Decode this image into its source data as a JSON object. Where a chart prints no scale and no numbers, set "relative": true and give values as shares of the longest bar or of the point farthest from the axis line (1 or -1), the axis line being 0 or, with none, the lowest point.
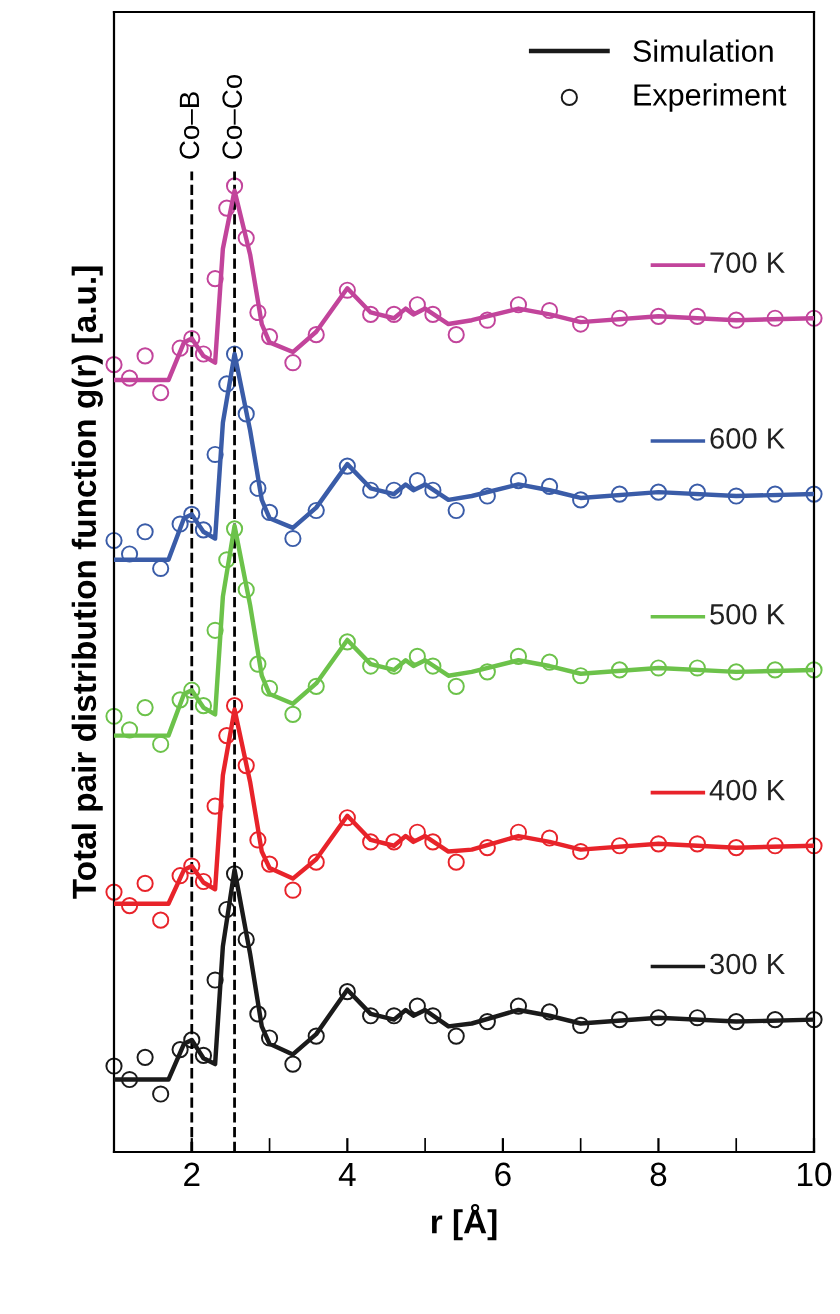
{
  "chart_data": {
    "type": "line",
    "relative": true,
    "xlabel": "r [Å]",
    "ylabel": "Total pair distribution function g(r) [a.u.]",
    "xlim": [
      1,
      10
    ],
    "xticks": [
      2,
      4,
      6,
      8,
      10
    ],
    "grid": false,
    "legend": "top right",
    "line_style": "solid",
    "annotations": [
      "Simulation",
      "Experiment"
    ],
    "ref_lines": [
      {
        "axis": "x",
        "value": 2.0,
        "label": "Co–B",
        "color": "#000000",
        "line_style": "dashed"
      },
      {
        "axis": "x",
        "value": 2.55,
        "label": "Co–Co",
        "color": "#000000",
        "line_style": "dashed"
      }
    ],
    "series": [
      {
        "name": "700 K",
        "color": "#c2449b",
        "marker": "none",
        "x": [
          1.0,
          1.7,
          1.9,
          2.0,
          2.15,
          2.3,
          2.4,
          2.55,
          2.75,
          2.9,
          3.0,
          3.3,
          3.6,
          4.0,
          4.3,
          4.6,
          4.75,
          4.85,
          5.0,
          5.3,
          5.6,
          6.2,
          6.6,
          7.0,
          8.0,
          9.0,
          10.0
        ],
        "values": [
          0.799,
          0.799,
          0.838,
          0.842,
          0.824,
          0.817,
          0.935,
          0.995,
          0.929,
          0.857,
          0.838,
          0.828,
          0.849,
          0.894,
          0.869,
          0.863,
          0.873,
          0.867,
          0.873,
          0.857,
          0.861,
          0.873,
          0.867,
          0.859,
          0.865,
          0.861,
          0.863
        ]
      },
      {
        "name": "600 K",
        "color": "#3a5ca8",
        "marker": "none",
        "x": [
          1.0,
          1.7,
          1.9,
          2.0,
          2.15,
          2.3,
          2.4,
          2.55,
          2.75,
          2.9,
          3.0,
          3.3,
          3.6,
          4.0,
          4.3,
          4.6,
          4.75,
          4.85,
          5.0,
          5.3,
          5.6,
          6.2,
          6.6,
          7.0,
          8.0,
          9.0,
          10.0
        ],
        "values": [
          0.613,
          0.613,
          0.656,
          0.66,
          0.642,
          0.635,
          0.755,
          0.826,
          0.747,
          0.675,
          0.656,
          0.646,
          0.667,
          0.712,
          0.687,
          0.681,
          0.691,
          0.685,
          0.691,
          0.675,
          0.679,
          0.691,
          0.685,
          0.677,
          0.683,
          0.679,
          0.681
        ]
      },
      {
        "name": "500 K",
        "color": "#6cc24a",
        "marker": "none",
        "x": [
          1.0,
          1.7,
          1.9,
          2.0,
          2.15,
          2.3,
          2.4,
          2.55,
          2.75,
          2.9,
          3.0,
          3.3,
          3.6,
          4.0,
          4.3,
          4.6,
          4.75,
          4.85,
          5.0,
          5.3,
          5.6,
          6.2,
          6.6,
          7.0,
          8.0,
          9.0,
          10.0
        ],
        "values": [
          0.431,
          0.431,
          0.474,
          0.478,
          0.46,
          0.453,
          0.575,
          0.648,
          0.566,
          0.493,
          0.474,
          0.464,
          0.485,
          0.53,
          0.505,
          0.499,
          0.509,
          0.503,
          0.509,
          0.493,
          0.497,
          0.509,
          0.503,
          0.495,
          0.501,
          0.497,
          0.499
        ]
      },
      {
        "name": "400 K",
        "color": "#e8232a",
        "marker": "none",
        "x": [
          1.0,
          1.7,
          1.9,
          2.0,
          2.15,
          2.3,
          2.4,
          2.55,
          2.75,
          2.9,
          3.0,
          3.3,
          3.6,
          4.0,
          4.3,
          4.6,
          4.75,
          4.85,
          5.0,
          5.3,
          5.6,
          6.2,
          6.6,
          7.0,
          8.0,
          9.0,
          10.0
        ],
        "values": [
          0.257,
          0.257,
          0.292,
          0.296,
          0.279,
          0.272,
          0.39,
          0.458,
          0.383,
          0.311,
          0.294,
          0.283,
          0.303,
          0.348,
          0.323,
          0.317,
          0.327,
          0.321,
          0.327,
          0.311,
          0.313,
          0.327,
          0.321,
          0.313,
          0.319,
          0.315,
          0.317
        ]
      },
      {
        "name": "300 K",
        "color": "#1a1a1a",
        "marker": "none",
        "x": [
          1.0,
          1.7,
          1.9,
          2.0,
          2.15,
          2.3,
          2.4,
          2.55,
          2.75,
          2.9,
          3.0,
          3.3,
          3.6,
          4.0,
          4.3,
          4.6,
          4.75,
          4.85,
          5.0,
          5.3,
          5.6,
          6.2,
          6.6,
          7.0,
          8.0,
          9.0,
          10.0
        ],
        "values": [
          0.075,
          0.075,
          0.112,
          0.116,
          0.097,
          0.091,
          0.213,
          0.292,
          0.205,
          0.13,
          0.112,
          0.101,
          0.122,
          0.168,
          0.143,
          0.137,
          0.147,
          0.141,
          0.147,
          0.13,
          0.133,
          0.147,
          0.141,
          0.133,
          0.139,
          0.135,
          0.137
        ]
      },
      {
        "type": "scatter",
        "color": "#c2449b",
        "marker": "circle",
        "x": [
          1.0,
          1.2,
          1.4,
          1.6,
          1.85,
          2.0,
          2.15,
          2.3,
          2.45,
          2.55,
          2.7,
          2.85,
          3.0,
          3.3,
          3.6,
          4.0,
          4.3,
          4.6,
          4.9,
          5.1,
          5.4,
          5.8,
          6.2,
          6.6,
          7.0,
          7.5,
          8.0,
          8.5,
          9.0,
          9.5,
          10.0
        ],
        "values": [
          0.815,
          0.801,
          0.824,
          0.786,
          0.832,
          0.842,
          0.826,
          0.904,
          0.977,
          1.0,
          0.946,
          0.869,
          0.844,
          0.817,
          0.846,
          0.892,
          0.867,
          0.867,
          0.877,
          0.867,
          0.846,
          0.861,
          0.877,
          0.871,
          0.857,
          0.863,
          0.865,
          0.865,
          0.861,
          0.863,
          0.863
        ]
      },
      {
        "type": "scatter",
        "color": "#3a5ca8",
        "marker": "circle",
        "x": [
          1.0,
          1.2,
          1.4,
          1.6,
          1.85,
          2.0,
          2.15,
          2.3,
          2.45,
          2.55,
          2.7,
          2.85,
          3.0,
          3.3,
          3.6,
          4.0,
          4.3,
          4.6,
          4.9,
          5.1,
          5.4,
          5.8,
          6.2,
          6.6,
          7.0,
          7.5,
          8.0,
          8.5,
          9.0,
          9.5,
          10.0
        ],
        "values": [
          0.633,
          0.619,
          0.642,
          0.604,
          0.65,
          0.66,
          0.644,
          0.722,
          0.795,
          0.826,
          0.764,
          0.687,
          0.662,
          0.635,
          0.664,
          0.71,
          0.685,
          0.685,
          0.695,
          0.685,
          0.664,
          0.679,
          0.695,
          0.689,
          0.675,
          0.681,
          0.683,
          0.683,
          0.679,
          0.681,
          0.681
        ]
      },
      {
        "type": "scatter",
        "color": "#6cc24a",
        "marker": "circle",
        "x": [
          1.0,
          1.2,
          1.4,
          1.6,
          1.85,
          2.0,
          2.15,
          2.3,
          2.45,
          2.55,
          2.7,
          2.85,
          3.0,
          3.3,
          3.6,
          4.0,
          4.3,
          4.6,
          4.9,
          5.1,
          5.4,
          5.8,
          6.2,
          6.6,
          7.0,
          7.5,
          8.0,
          8.5,
          9.0,
          9.5,
          10.0
        ],
        "values": [
          0.451,
          0.437,
          0.46,
          0.422,
          0.468,
          0.478,
          0.462,
          0.54,
          0.613,
          0.645,
          0.582,
          0.505,
          0.48,
          0.453,
          0.482,
          0.528,
          0.503,
          0.503,
          0.513,
          0.503,
          0.482,
          0.497,
          0.513,
          0.507,
          0.493,
          0.499,
          0.501,
          0.501,
          0.497,
          0.499,
          0.499
        ]
      },
      {
        "type": "scatter",
        "color": "#e8232a",
        "marker": "circle",
        "x": [
          1.0,
          1.2,
          1.4,
          1.6,
          1.85,
          2.0,
          2.15,
          2.3,
          2.45,
          2.55,
          2.7,
          2.85,
          3.0,
          3.3,
          3.6,
          4.0,
          4.3,
          4.6,
          4.9,
          5.1,
          5.4,
          5.8,
          6.2,
          6.6,
          7.0,
          7.5,
          8.0,
          8.5,
          9.0,
          9.5,
          10.0
        ],
        "values": [
          0.269,
          0.255,
          0.278,
          0.24,
          0.286,
          0.296,
          0.28,
          0.358,
          0.431,
          0.462,
          0.4,
          0.323,
          0.298,
          0.271,
          0.3,
          0.346,
          0.321,
          0.321,
          0.331,
          0.321,
          0.3,
          0.315,
          0.331,
          0.325,
          0.311,
          0.317,
          0.319,
          0.319,
          0.315,
          0.317,
          0.317
        ]
      },
      {
        "type": "scatter",
        "color": "#1a1a1a",
        "marker": "circle",
        "x": [
          1.0,
          1.2,
          1.4,
          1.6,
          1.85,
          2.0,
          2.15,
          2.3,
          2.45,
          2.55,
          2.7,
          2.85,
          3.0,
          3.3,
          3.6,
          4.0,
          4.3,
          4.6,
          4.9,
          5.1,
          5.4,
          5.8,
          6.2,
          6.6,
          7.0,
          7.5,
          8.0,
          8.5,
          9.0,
          9.5,
          10.0
        ],
        "values": [
          0.089,
          0.075,
          0.098,
          0.06,
          0.106,
          0.116,
          0.1,
          0.178,
          0.251,
          0.288,
          0.22,
          0.143,
          0.118,
          0.091,
          0.12,
          0.166,
          0.141,
          0.141,
          0.151,
          0.141,
          0.12,
          0.135,
          0.151,
          0.145,
          0.131,
          0.137,
          0.139,
          0.139,
          0.135,
          0.137,
          0.137
        ]
      }
    ]
  }
}
